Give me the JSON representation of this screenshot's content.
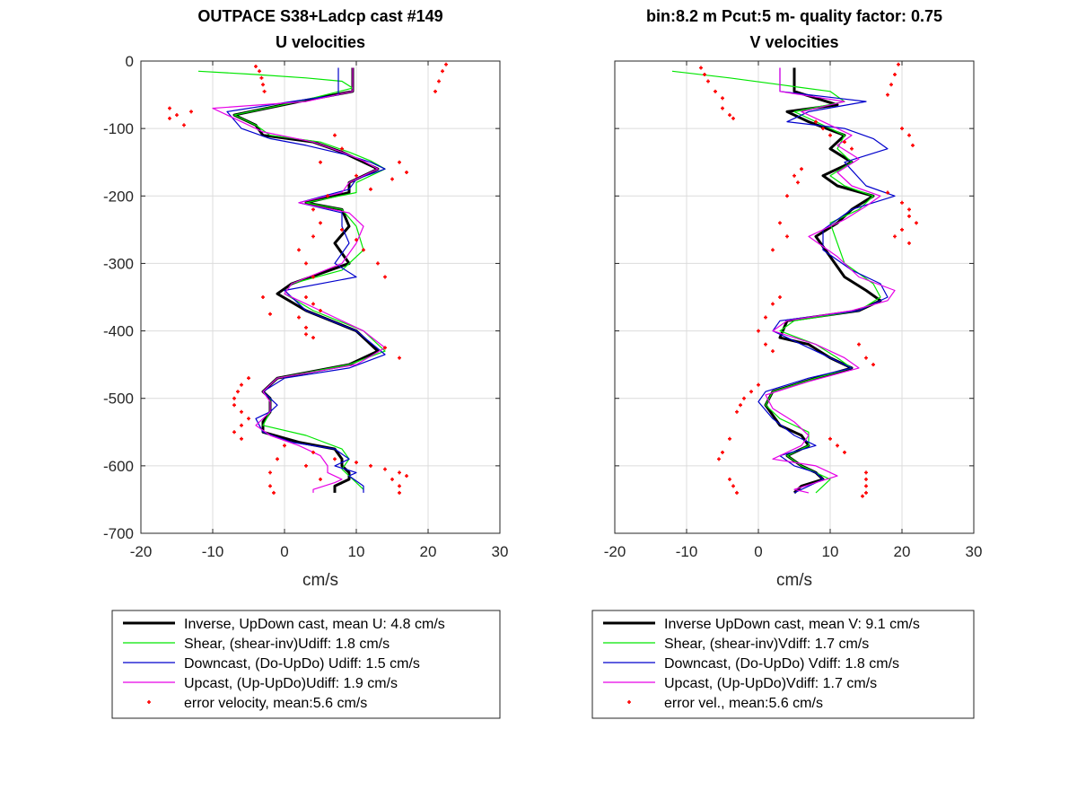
{
  "chart_data": [
    {
      "type": "line",
      "title": "OUTPACE S38+Ladcp cast #149",
      "subtitle": "U velocities",
      "xlabel": "cm/s",
      "ylabel": "",
      "xlim": [
        -20,
        30
      ],
      "ylim": [
        -700,
        0
      ],
      "xticks": [
        -20,
        -10,
        0,
        10,
        20,
        30
      ],
      "yticks": [
        0,
        -100,
        -200,
        -300,
        -400,
        -500,
        -600,
        -700
      ],
      "grid": true,
      "legend_position": "below",
      "series": [
        {
          "name": "Inverse, UpDown cast, mean U:  4.8 cm/s",
          "color": "#000000",
          "style": "thick-line",
          "x": [
            9.5,
            9.5,
            9.5,
            2,
            -7,
            -4,
            -3,
            4,
            8,
            11,
            13,
            9,
            9,
            3,
            8,
            9,
            7,
            9,
            1,
            -1,
            3,
            10,
            13,
            9,
            -1,
            -3,
            -2,
            -2,
            -3,
            -3,
            2,
            7,
            8,
            8,
            9,
            9,
            7,
            7
          ],
          "y": [
            -10,
            -25,
            -45,
            -60,
            -80,
            -95,
            -110,
            -120,
            -135,
            -150,
            -160,
            -180,
            -195,
            -210,
            -220,
            -245,
            -270,
            -300,
            -330,
            -345,
            -370,
            -400,
            -430,
            -450,
            -470,
            -490,
            -500,
            -520,
            -535,
            -550,
            -565,
            -575,
            -590,
            -600,
            -610,
            -620,
            -630,
            -640
          ]
        },
        {
          "name": "Shear, (shear-inv)Udiff:  1.8 cm/s",
          "color": "#00e600",
          "style": "line",
          "x": [
            -12,
            -4,
            3,
            8,
            9.5,
            2,
            -7,
            -4,
            -2,
            5,
            9,
            12,
            14,
            10,
            10,
            3,
            8,
            10,
            11,
            8,
            1,
            0,
            4,
            11,
            14,
            9,
            -1,
            -3,
            -2,
            -2,
            -3,
            3,
            8,
            9,
            8,
            9,
            10,
            11
          ],
          "y": [
            -15,
            -20,
            -25,
            -30,
            -40,
            -60,
            -80,
            -95,
            -110,
            -120,
            -135,
            -148,
            -160,
            -180,
            -195,
            -210,
            -220,
            -245,
            -280,
            -310,
            -330,
            -345,
            -370,
            -400,
            -430,
            -450,
            -470,
            -490,
            -500,
            -520,
            -540,
            -555,
            -575,
            -590,
            -605,
            -615,
            -625,
            -635
          ]
        },
        {
          "name": "Downcast, (Do-UpDo) Udiff:  1.5 cm/s",
          "color": "#0000cc",
          "style": "line",
          "x": [
            7.5,
            7.5,
            7.5,
            1,
            -8,
            -6,
            -2,
            3,
            9,
            12,
            14,
            10,
            9,
            2,
            8,
            8,
            9,
            7,
            10,
            0,
            3,
            10,
            14,
            9,
            0,
            -3,
            -1,
            -2,
            -4,
            -3,
            1,
            7,
            9,
            7,
            10,
            9,
            11,
            11
          ],
          "y": [
            -10,
            -30,
            -50,
            -60,
            -75,
            -100,
            -115,
            -125,
            -140,
            -150,
            -160,
            -175,
            -190,
            -210,
            -225,
            -245,
            -270,
            -300,
            -320,
            -340,
            -370,
            -400,
            -435,
            -455,
            -470,
            -490,
            -510,
            -520,
            -530,
            -550,
            -565,
            -575,
            -590,
            -600,
            -610,
            -615,
            -630,
            -640
          ]
        },
        {
          "name": "Upcast, (Up-UpDo)Udiff:  1.9 cm/s",
          "color": "#e600e6",
          "style": "line",
          "x": [
            9.5,
            9.5,
            9.5,
            3,
            -10,
            -6,
            -3,
            4,
            8,
            11,
            13,
            9,
            8,
            2,
            9,
            11,
            10,
            8,
            1,
            0,
            5,
            11,
            14,
            10,
            -1,
            -3,
            -2,
            -2,
            -4,
            -2,
            2,
            5,
            6,
            6,
            8,
            7,
            4,
            4
          ],
          "y": [
            -10,
            -25,
            -45,
            -60,
            -70,
            -90,
            -105,
            -120,
            -135,
            -148,
            -160,
            -180,
            -195,
            -210,
            -225,
            -245,
            -270,
            -300,
            -330,
            -345,
            -370,
            -400,
            -425,
            -450,
            -470,
            -490,
            -505,
            -520,
            -540,
            -555,
            -570,
            -585,
            -600,
            -610,
            -620,
            -625,
            -635,
            -640
          ]
        },
        {
          "name": "error velocity, mean:5.6 cm/s",
          "color": "#ff0000",
          "style": "markers",
          "x": [
            -4,
            -3.5,
            -3.2,
            -3,
            -2.8,
            -16,
            -15,
            -14,
            -16,
            -13,
            7,
            8,
            5,
            10,
            12,
            16,
            17,
            15,
            6,
            4,
            5,
            4,
            2,
            3,
            4,
            8,
            10,
            11,
            13,
            14,
            3,
            4,
            5,
            -3,
            -2,
            2,
            3,
            3,
            4,
            14,
            16,
            -5,
            -6,
            -6.5,
            -7,
            -7,
            -6,
            -5,
            -6,
            -7,
            -6,
            4,
            7,
            10,
            12,
            14,
            16,
            15,
            17,
            16,
            16,
            0,
            -1,
            -2,
            -2,
            -1.5,
            3,
            5,
            22.5,
            22,
            21.5,
            21
          ],
          "y": [
            -8,
            -15,
            -25,
            -35,
            -45,
            -70,
            -80,
            -95,
            -85,
            -75,
            -110,
            -130,
            -150,
            -170,
            -190,
            -150,
            -165,
            -175,
            -200,
            -220,
            -240,
            -260,
            -280,
            -300,
            -320,
            -250,
            -265,
            -280,
            -300,
            -320,
            -350,
            -360,
            -370,
            -350,
            -375,
            -380,
            -395,
            -405,
            -410,
            -425,
            -440,
            -470,
            -480,
            -490,
            -500,
            -510,
            -520,
            -530,
            -540,
            -550,
            -560,
            -580,
            -590,
            -595,
            -600,
            -605,
            -610,
            -620,
            -615,
            -630,
            -640,
            -570,
            -590,
            -610,
            -630,
            -640,
            -600,
            -620,
            -5,
            -15,
            -30,
            -45
          ]
        }
      ]
    },
    {
      "type": "line",
      "title": "bin:8.2 m  Pcut:5 m- quality factor:  0.75",
      "subtitle": "V velocities",
      "xlabel": "cm/s",
      "ylabel": "",
      "xlim": [
        -20,
        30
      ],
      "ylim": [
        -700,
        0
      ],
      "xticks": [
        -20,
        -10,
        0,
        10,
        20,
        30
      ],
      "yticks": [],
      "grid": true,
      "legend_position": "below",
      "series": [
        {
          "name": "Inverse UpDown cast, mean V:  9.1 cm/s",
          "color": "#000000",
          "style": "thick-line",
          "x": [
            5,
            5,
            5,
            11,
            4,
            7,
            12,
            10,
            13,
            9,
            11,
            16,
            13,
            11,
            8,
            10,
            12,
            15,
            17,
            14,
            4,
            3,
            7,
            10,
            13,
            8,
            2,
            1,
            3,
            6,
            7,
            4,
            6,
            8,
            9,
            6,
            5
          ],
          "y": [
            -10,
            -30,
            -45,
            -65,
            -75,
            -90,
            -110,
            -130,
            -150,
            -170,
            -185,
            -200,
            -220,
            -240,
            -260,
            -290,
            -320,
            -340,
            -355,
            -370,
            -385,
            -410,
            -420,
            -440,
            -455,
            -470,
            -490,
            -510,
            -540,
            -555,
            -570,
            -585,
            -600,
            -610,
            -620,
            -630,
            -640
          ]
        },
        {
          "name": "Shear, (shear-inv)Vdiff:  1.7 cm/s",
          "color": "#00e600",
          "style": "line",
          "x": [
            -12,
            -4,
            3,
            10,
            12,
            5,
            8,
            12,
            11,
            13,
            10,
            12,
            16,
            14,
            10,
            11,
            12,
            16,
            17,
            14,
            5,
            3,
            8,
            11,
            13,
            8,
            2,
            1,
            3,
            7,
            7,
            4,
            6,
            8,
            10,
            9,
            8
          ],
          "y": [
            -15,
            -25,
            -35,
            -45,
            -60,
            -75,
            -90,
            -110,
            -130,
            -150,
            -170,
            -185,
            -200,
            -220,
            -240,
            -270,
            -300,
            -330,
            -350,
            -370,
            -385,
            -400,
            -420,
            -440,
            -455,
            -470,
            -490,
            -510,
            -530,
            -550,
            -570,
            -585,
            -600,
            -610,
            -620,
            -630,
            -640
          ]
        },
        {
          "name": "Downcast, (Do-UpDo) Vdiff:  1.8 cm/s",
          "color": "#0000cc",
          "style": "line",
          "x": [
            3,
            3,
            3,
            11,
            15,
            7,
            4,
            12,
            16,
            18,
            12,
            15,
            19,
            13,
            9,
            9,
            13,
            17,
            18,
            14,
            3,
            2,
            6,
            10,
            13,
            7,
            1,
            0,
            2,
            5,
            8,
            3,
            5,
            8,
            9,
            7,
            5
          ],
          "y": [
            -10,
            -30,
            -45,
            -55,
            -60,
            -75,
            -90,
            -100,
            -115,
            -130,
            -150,
            -185,
            -200,
            -220,
            -250,
            -280,
            -310,
            -330,
            -350,
            -370,
            -385,
            -400,
            -420,
            -440,
            -455,
            -470,
            -490,
            -505,
            -530,
            -555,
            -570,
            -585,
            -600,
            -610,
            -620,
            -630,
            -640
          ]
        },
        {
          "name": "Upcast, (Up-UpDo)Vdiff:  1.7 cm/s",
          "color": "#e600e6",
          "style": "line",
          "x": [
            3,
            3,
            3,
            12,
            6,
            9,
            13,
            11,
            14,
            11,
            13,
            17,
            15,
            12,
            7,
            11,
            14,
            19,
            18,
            13,
            4,
            2,
            8,
            12,
            14,
            7,
            1,
            2,
            5,
            7,
            6,
            2,
            8,
            11,
            8,
            5,
            7
          ],
          "y": [
            -10,
            -30,
            -45,
            -60,
            -75,
            -90,
            -110,
            -125,
            -145,
            -165,
            -185,
            -200,
            -215,
            -235,
            -260,
            -290,
            -320,
            -340,
            -355,
            -370,
            -385,
            -400,
            -420,
            -440,
            -455,
            -475,
            -495,
            -515,
            -535,
            -555,
            -570,
            -590,
            -600,
            -615,
            -625,
            -635,
            -640
          ]
        },
        {
          "name": "error vel., mean:5.6 cm/s",
          "color": "#ff0000",
          "style": "markers",
          "x": [
            -8,
            -7.5,
            -7,
            -6,
            -5,
            -5,
            -4,
            -3.5,
            8,
            9,
            10,
            12,
            13,
            20,
            21,
            21.5,
            6,
            5,
            5.5,
            4,
            3,
            4,
            2,
            18,
            20,
            21,
            21,
            22,
            20,
            19,
            21,
            3,
            2,
            1,
            0,
            1,
            2,
            14,
            15,
            16,
            0,
            -1,
            -2,
            -2.5,
            -3,
            -4,
            -5,
            -5.5,
            10,
            11,
            12,
            -4,
            -3.5,
            -3,
            15,
            15,
            15,
            15,
            14.5,
            19.5,
            19,
            18.5,
            18
          ],
          "y": [
            -10,
            -20,
            -30,
            -45,
            -55,
            -70,
            -80,
            -85,
            -90,
            -100,
            -110,
            -120,
            -130,
            -100,
            -110,
            -125,
            -160,
            -170,
            -180,
            -200,
            -240,
            -260,
            -280,
            -195,
            -210,
            -220,
            -230,
            -240,
            -250,
            -260,
            -270,
            -350,
            -360,
            -380,
            -400,
            -420,
            -430,
            -420,
            -440,
            -450,
            -480,
            -490,
            -500,
            -510,
            -520,
            -560,
            -580,
            -590,
            -560,
            -570,
            -580,
            -620,
            -630,
            -640,
            -610,
            -620,
            -630,
            -640,
            -645,
            -5,
            -20,
            -35,
            -50
          ]
        }
      ]
    }
  ]
}
